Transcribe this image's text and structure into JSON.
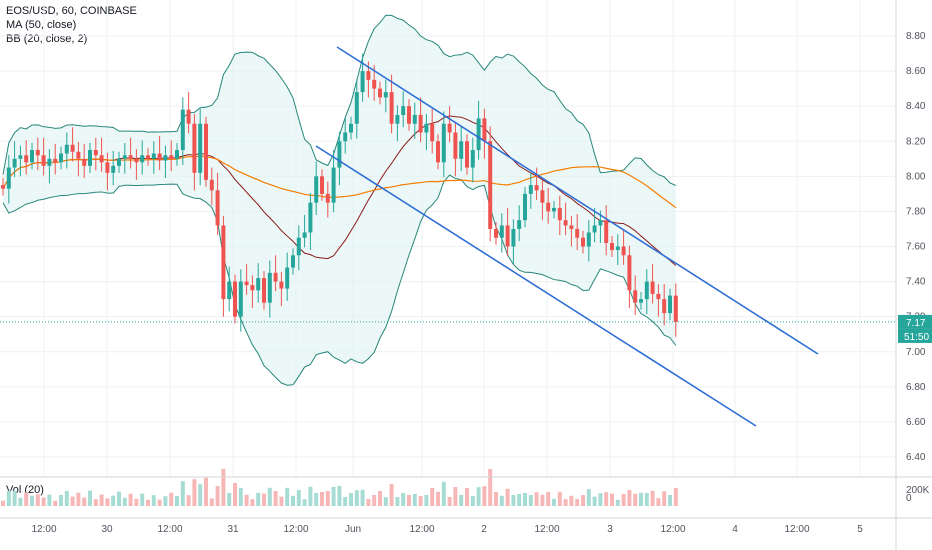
{
  "legend": {
    "symbol": "EOS/USD, 60, COINBASE",
    "ma": "MA (50, close)",
    "bb": "BB (20, close, 2)",
    "vol": "Vol (20)"
  },
  "badges": {
    "price": "7.17",
    "countdown": "51:50"
  },
  "colors": {
    "up": "#26a69a",
    "down": "#ef5350",
    "ma": "#f57c00",
    "bb_basis": "#8b1a1a",
    "bb_band": "#26867a",
    "bb_fill": "#e0f3f1",
    "channel": "#2f6fd6",
    "grid": "#eef0f3",
    "price_line": "#26a69a",
    "countdown_bg": "#26a69a"
  },
  "chart_data": {
    "type": "candlestick",
    "price_axis": {
      "min": 6.3,
      "max": 8.95,
      "ticks": [
        "8.80",
        "8.60",
        "8.40",
        "8.20",
        "8.00",
        "7.80",
        "7.60",
        "7.40",
        "7.20",
        "7.00",
        "6.80",
        "6.60",
        "6.40"
      ]
    },
    "volume_axis": {
      "max": 240000,
      "ticks": [
        "200K",
        "0"
      ]
    },
    "x_ticks": [
      "12:00",
      "30",
      "12:00",
      "31",
      "12:00",
      "Jun",
      "12:00",
      "2",
      "12:00",
      "3",
      "12:00",
      "4",
      "12:00",
      "5"
    ],
    "candles_close_approx": [
      7.93,
      8.05,
      8.1,
      8.12,
      8.08,
      8.15,
      8.12,
      8.06,
      8.1,
      8.08,
      8.13,
      8.18,
      8.14,
      8.1,
      8.06,
      8.15,
      8.12,
      8.08,
      8.02,
      8.06,
      8.1,
      8.12,
      8.1,
      8.08,
      8.12,
      8.1,
      8.13,
      8.09,
      8.12,
      8.1,
      8.15,
      8.38,
      8.3,
      8.02,
      8.3,
      7.98,
      7.92,
      7.72,
      7.3,
      7.4,
      7.2,
      7.4,
      7.38,
      7.35,
      7.42,
      7.28,
      7.45,
      7.4,
      7.36,
      7.48,
      7.55,
      7.65,
      7.68,
      7.85,
      8.0,
      7.9,
      7.85,
      8.05,
      8.2,
      8.25,
      8.3,
      8.48,
      8.6,
      8.55,
      8.5,
      8.45,
      8.48,
      8.3,
      8.35,
      8.4,
      8.3,
      8.35,
      8.25,
      8.3,
      8.2,
      8.08,
      8.3,
      8.25,
      8.1,
      8.2,
      8.05,
      8.15,
      8.33,
      8.2,
      7.7,
      7.65,
      7.72,
      7.6,
      7.7,
      7.75,
      7.9,
      7.95,
      7.92,
      7.85,
      7.8,
      7.82,
      7.75,
      7.72,
      7.7,
      7.65,
      7.6,
      7.68,
      7.72,
      7.75,
      7.62,
      7.58,
      7.6,
      7.55,
      7.35,
      7.28,
      7.3,
      7.4,
      7.33,
      7.3,
      7.22,
      7.32,
      7.17
    ],
    "moving_average_50": "orange line, rising from ~7.82 to ~8.07 then declining to ~7.68",
    "bollinger_bands": "upper/lower envelope around price, basis dark red",
    "channel": {
      "upper": [
        [
          8.72,
          "Jun 01 01:00"
        ],
        [
          6.98,
          "Jun 04 14:00"
        ]
      ],
      "lower": [
        [
          8.17,
          "May 31 22:00"
        ],
        [
          6.57,
          "Jun 04 01:00"
        ]
      ]
    },
    "current_price": 7.17
  }
}
